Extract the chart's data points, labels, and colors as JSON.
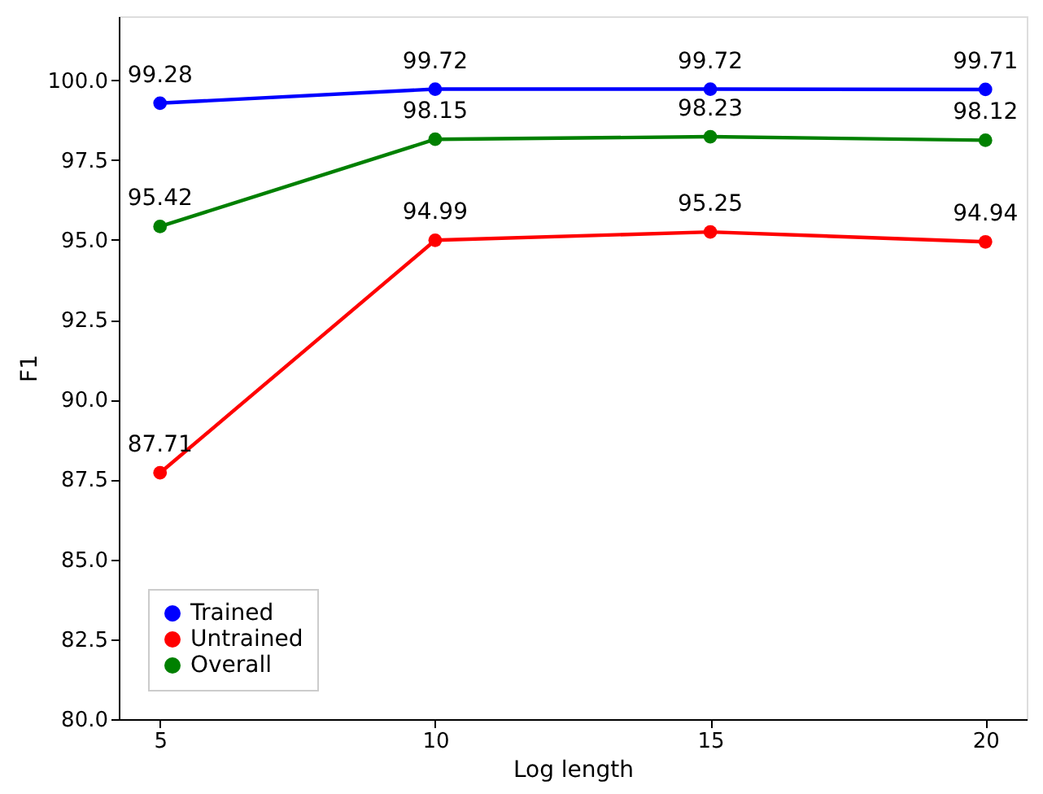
{
  "chart_data": {
    "type": "line",
    "xlabel": "Log length",
    "ylabel": "F1",
    "x": [
      5,
      10,
      15,
      20
    ],
    "series": [
      {
        "name": "Trained",
        "color": "#0000ff",
        "values": [
          99.28,
          99.72,
          99.72,
          99.71
        ]
      },
      {
        "name": "Untrained",
        "color": "#ff0000",
        "values": [
          87.71,
          94.99,
          95.25,
          94.94
        ]
      },
      {
        "name": "Overall",
        "color": "#008000",
        "values": [
          95.42,
          98.15,
          98.23,
          98.12
        ]
      }
    ],
    "xlim": [
      4.25,
      20.75
    ],
    "xticks": [
      5,
      10,
      15,
      20
    ],
    "ylim": [
      80,
      102
    ],
    "yticks": [
      {
        "value": 80,
        "label": "80.0"
      },
      {
        "value": 82.5,
        "label": "82.5"
      },
      {
        "value": 85,
        "label": "85.0"
      },
      {
        "value": 87.5,
        "label": "87.5"
      },
      {
        "value": 90,
        "label": "90.0"
      },
      {
        "value": 92.5,
        "label": "92.5"
      },
      {
        "value": 95,
        "label": "95.0"
      },
      {
        "value": 97.5,
        "label": "97.5"
      },
      {
        "value": 100,
        "label": "100.0"
      }
    ],
    "data_labels": true,
    "grid": false,
    "legend": "bottom left",
    "marker": "circle",
    "line_style": "solid"
  }
}
